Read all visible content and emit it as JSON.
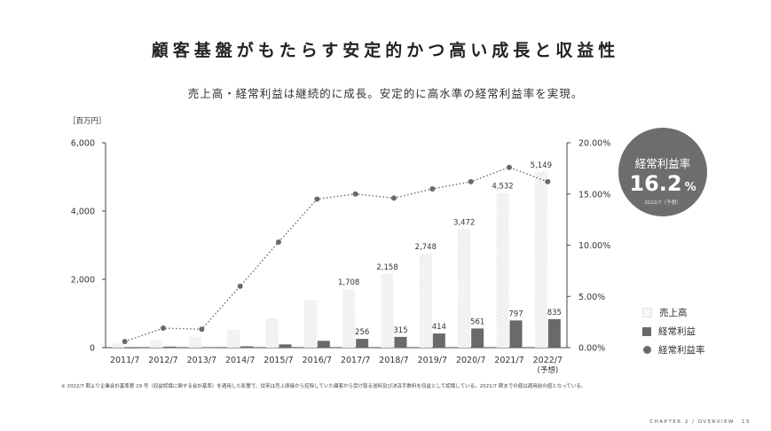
{
  "page": {
    "title": "顧客基盤がもたらす安定的かつ高い成長と収益性",
    "subtitle": "売上高・経常利益は継続的に成長。安定的に高水準の経常利益率を実現。",
    "footnote": "※ 2022/7 期より企業会計基準第 29 号（収益認識に関する会計基準）を適用した影響で、従来は売上原価から控除していた顧客から受け取る送料及び決済手数料を収益として認識している。2021/7 期までの値は適用前の値となっている。",
    "footer_chapter": "CHAPTER 2 / OVERVIEW",
    "footer_page": "15"
  },
  "badge": {
    "label": "経常利益率",
    "value": "16.2",
    "unit": "%",
    "note": "2022/7（予想）"
  },
  "legend": {
    "sales": "売上高",
    "profit": "経常利益",
    "rate": "経常利益率"
  },
  "colors": {
    "sales_hatch": "#e6e6e6",
    "profit": "#6a6a6a",
    "rate": "#6a6a6a",
    "badge": "#6d6d6d",
    "axis": "#444444"
  },
  "chart_data": {
    "type": "bar",
    "left_axis_unit": "［百万円］",
    "categories": [
      "2011/7",
      "2012/7",
      "2013/7",
      "2014/7",
      "2015/7",
      "2016/7",
      "2017/7",
      "2018/7",
      "2019/7",
      "2020/7",
      "2021/7",
      "2022/7"
    ],
    "category_notes": [
      "",
      "",
      "",
      "",
      "",
      "",
      "",
      "",
      "",
      "",
      "",
      "(予想)"
    ],
    "series": [
      {
        "name": "売上高",
        "type": "bar",
        "axis": "left",
        "values": [
          120,
          210,
          320,
          520,
          860,
          1380,
          1708,
          2158,
          2748,
          3472,
          4532,
          5149
        ],
        "labels": [
          "",
          "",
          "",
          "",
          "",
          "",
          "1,708",
          "2,158",
          "2,748",
          "3,472",
          "4,532",
          "5,149"
        ]
      },
      {
        "name": "経常利益",
        "type": "bar",
        "axis": "left",
        "values": [
          5,
          30,
          15,
          40,
          95,
          200,
          256,
          315,
          414,
          561,
          797,
          835
        ],
        "labels": [
          "",
          "",
          "",
          "",
          "",
          "",
          "256",
          "315",
          "414",
          "561",
          "797",
          "835"
        ]
      },
      {
        "name": "経常利益率",
        "type": "line",
        "axis": "right",
        "values": [
          0.6,
          1.9,
          1.8,
          6.0,
          10.3,
          14.5,
          15.0,
          14.6,
          15.5,
          16.2,
          17.6,
          16.2
        ]
      }
    ],
    "left_axis": {
      "min": 0,
      "max": 6000,
      "ticks": [
        0,
        2000,
        4000,
        6000
      ],
      "tick_labels": [
        "0",
        "2,000",
        "4,000",
        "6,000"
      ]
    },
    "right_axis": {
      "min": 0,
      "max": 20,
      "ticks": [
        0,
        5,
        10,
        15,
        20
      ],
      "tick_labels": [
        "0.00%",
        "5.00%",
        "10.00%",
        "15.00%",
        "20.00%"
      ]
    },
    "grid": false,
    "legend_position": "right"
  }
}
